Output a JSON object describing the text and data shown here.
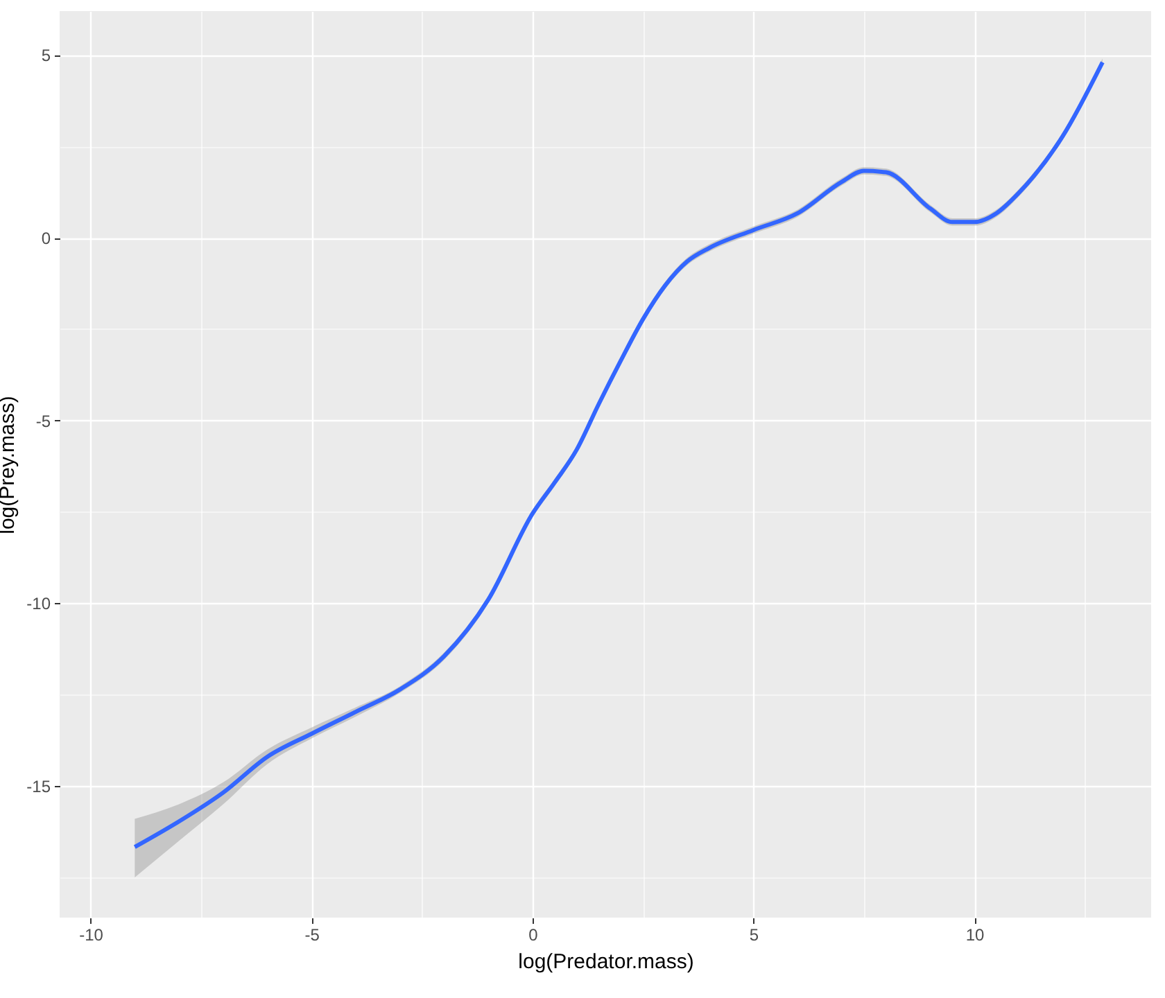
{
  "chart_data": {
    "type": "line",
    "xlabel": "log(Predator.mass)",
    "ylabel": "log(Prey.mass)",
    "x": [
      -9,
      -8,
      -7,
      -6,
      -5,
      -4,
      -3,
      -2,
      -1,
      0,
      0.5,
      1,
      1.5,
      2,
      2.5,
      3,
      3.5,
      4,
      5,
      6,
      7,
      7.5,
      8,
      9,
      9.5,
      10,
      10.5,
      11,
      12,
      12.9
    ],
    "series": [
      {
        "color": "#3366ff",
        "values": [
          -16.67,
          -15.97,
          -15.18,
          -14.2,
          -13.57,
          -12.97,
          -12.36,
          -11.45,
          -9.9,
          -7.55,
          -6.7,
          -5.8,
          -4.55,
          -3.36,
          -2.23,
          -1.31,
          -0.65,
          -0.28,
          0.21,
          0.67,
          1.53,
          1.83,
          1.79,
          0.8,
          0.43,
          0.43,
          0.67,
          1.22,
          2.78,
          4.8
        ],
        "lower": [
          -17.5,
          -16.5,
          -15.5,
          -14.4,
          -13.7,
          -13.1,
          -12.45,
          -11.55,
          -10.0,
          -7.65,
          -6.8,
          -5.9,
          -4.65,
          -3.46,
          -2.33,
          -1.41,
          -0.75,
          -0.38,
          0.11,
          0.57,
          1.43,
          1.73,
          1.69,
          0.7,
          0.33,
          0.33,
          0.57,
          1.12,
          2.68,
          4.7
        ],
        "upper": [
          -15.9,
          -15.5,
          -14.9,
          -14.0,
          -13.4,
          -12.85,
          -12.27,
          -11.35,
          -9.8,
          -7.45,
          -6.6,
          -5.7,
          -4.45,
          -3.26,
          -2.13,
          -1.21,
          -0.55,
          -0.18,
          0.31,
          0.77,
          1.63,
          1.93,
          1.89,
          0.9,
          0.53,
          0.53,
          0.77,
          1.32,
          2.88,
          4.9
        ]
      }
    ],
    "xlim": [
      -10.7,
      14.0
    ],
    "ylim": [
      -18.6,
      6.2
    ],
    "xticks": [
      -10,
      {
        "value": -7.5,
        "label": null
      },
      -5,
      {
        "value": -2.5,
        "label": null
      },
      0,
      {
        "value": 2.5,
        "label": null
      },
      5,
      {
        "value": 7.5,
        "label": null
      },
      10,
      {
        "value": 12.5,
        "label": null
      }
    ],
    "yticks": [
      {
        "value": -17.5,
        "label": null
      },
      -15,
      {
        "value": -12.5,
        "label": null
      },
      -10,
      {
        "value": -7.5,
        "label": null
      },
      -5,
      {
        "value": -2.5,
        "label": null
      },
      0,
      {
        "value": 2.5,
        "label": null
      },
      5
    ],
    "grid": true
  }
}
